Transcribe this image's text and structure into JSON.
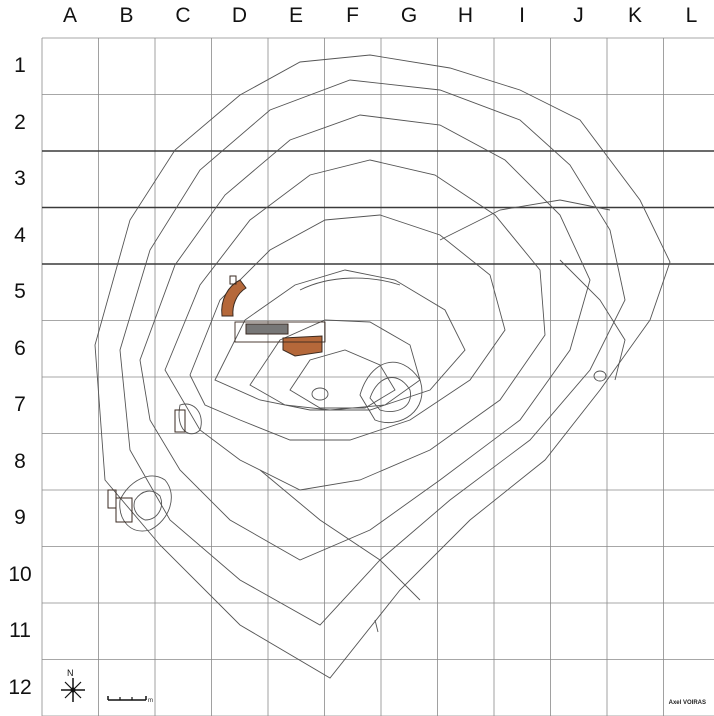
{
  "map": {
    "columns": [
      "A",
      "B",
      "C",
      "D",
      "E",
      "F",
      "G",
      "H",
      "I",
      "J",
      "K",
      "L"
    ],
    "rows": [
      "1",
      "2",
      "3",
      "4",
      "5",
      "6",
      "7",
      "8",
      "9",
      "10",
      "11",
      "12"
    ],
    "north_label": "N",
    "scale_label": "m",
    "credit": "Axel VOIRAS",
    "colors": {
      "grid": "#8a8a8a",
      "grid_major": "#3a3a3a",
      "contour": "#555555",
      "ruins_fill": "#b5683a",
      "ruins_outline": "#3a2a20",
      "structure": "#777777"
    }
  }
}
